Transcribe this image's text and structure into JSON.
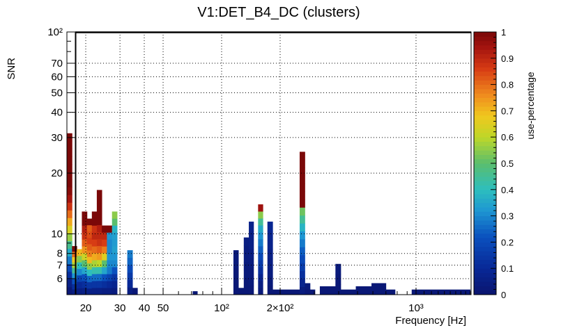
{
  "chart_data": {
    "type": "heatmap",
    "title": "V1:DET_B4_DC (clusters)",
    "xlabel": "Frequency [Hz]",
    "ylabel": "SNR",
    "zlabel": "use-percentage",
    "x_scale": "log",
    "y_scale": "log",
    "xlim": [
      16,
      1920
    ],
    "ylim": [
      5.0,
      100
    ],
    "zlim": [
      0,
      1
    ],
    "x_tick_labels": [
      "20",
      "30",
      "40",
      "50",
      "10²",
      "2×10²",
      "10³"
    ],
    "y_tick_labels": [
      "6",
      "7",
      "8",
      "10",
      "20",
      "30",
      "40",
      "50",
      "60",
      "70",
      "10²"
    ],
    "z_tick_labels": [
      "0",
      "0.1",
      "0.2",
      "0.3",
      "0.4",
      "0.5",
      "0.6",
      "0.7",
      "0.8",
      "0.9",
      "1"
    ],
    "grid": true,
    "colormap": "kBird-like rainbow (navy → blue → cyan → green → yellow → orange → red → dark red)",
    "columns": [
      {
        "x0": 16.0,
        "x1": 17.0,
        "snr_max": 31.5,
        "z": [
          0.02,
          0.06,
          0.12,
          0.2,
          0.28,
          0.36,
          0.46,
          0.56,
          0.64,
          0.72,
          0.8,
          0.88,
          0.94,
          0.98,
          1.0,
          1.0,
          1.0,
          1.0,
          1.0,
          1.0,
          1.0
        ]
      },
      {
        "x0": 17.0,
        "x1": 18.0,
        "snr_max": 8.7,
        "z": [
          0.05,
          0.12,
          0.22,
          0.32,
          0.45,
          0.58,
          0.68,
          0.8,
          1.0
        ]
      },
      {
        "x0": 18.0,
        "x1": 19.1,
        "snr_max": 8.4,
        "z": [
          0.05,
          0.1,
          0.18,
          0.3,
          0.4,
          0.55,
          0.7
        ]
      },
      {
        "x0": 19.1,
        "x1": 20.3,
        "snr_max": 12.9,
        "z": [
          0.06,
          0.12,
          0.22,
          0.35,
          0.5,
          0.62,
          0.75,
          0.82,
          0.88,
          0.92,
          1.0,
          1.0
        ]
      },
      {
        "x0": 20.3,
        "x1": 21.5,
        "snr_max": 11.9,
        "z": [
          0.06,
          0.14,
          0.25,
          0.4,
          0.55,
          0.7,
          0.78,
          0.82,
          0.86,
          0.84,
          0.82,
          1.0
        ]
      },
      {
        "x0": 21.5,
        "x1": 22.8,
        "snr_max": 12.9,
        "z": [
          0.06,
          0.14,
          0.26,
          0.42,
          0.58,
          0.72,
          0.8,
          0.86,
          0.9,
          0.88,
          1.0,
          1.0
        ]
      },
      {
        "x0": 22.8,
        "x1": 24.2,
        "snr_max": 16.5,
        "z": [
          0.06,
          0.14,
          0.26,
          0.42,
          0.6,
          0.74,
          0.82,
          0.88,
          0.9,
          0.92,
          1.0,
          1.0,
          1.0,
          1.0,
          1.0
        ]
      },
      {
        "x0": 24.2,
        "x1": 25.7,
        "snr_max": 11.0,
        "z": [
          0.05,
          0.12,
          0.22,
          0.35,
          0.5,
          0.65,
          0.78,
          0.86,
          0.9,
          1.0
        ]
      },
      {
        "x0": 25.7,
        "x1": 27.3,
        "snr_max": 11.0,
        "z": [
          0.05,
          0.1,
          0.18,
          0.28,
          0.3,
          0.32,
          0.3,
          0.3,
          0.32,
          1.0
        ]
      },
      {
        "x0": 27.3,
        "x1": 29.0,
        "snr_max": 12.9,
        "z": [
          0.04,
          0.08,
          0.14,
          0.22,
          0.3,
          0.32,
          0.34,
          0.33,
          0.34,
          0.38,
          0.5,
          0.55
        ]
      },
      {
        "x0": 32.7,
        "x1": 34.8,
        "snr_max": 8.3,
        "z": [
          0.05,
          0.1,
          0.15,
          0.2,
          0.25,
          0.28
        ]
      },
      {
        "x0": 34.8,
        "x1": 36.9,
        "snr_max": 5.4,
        "z": [
          0.02
        ]
      },
      {
        "x0": 71.0,
        "x1": 75.0,
        "snr_max": 5.2,
        "z": [
          0.02
        ]
      },
      {
        "x0": 115.0,
        "x1": 122.0,
        "snr_max": 8.3,
        "z": [
          0.02,
          0.02,
          0.02,
          0.03,
          0.03
        ]
      },
      {
        "x0": 122.0,
        "x1": 130.0,
        "snr_max": 5.4,
        "z": [
          0.02
        ]
      },
      {
        "x0": 130.0,
        "x1": 138.0,
        "snr_max": 9.6,
        "z": [
          0.02,
          0.02,
          0.03,
          0.03,
          0.04,
          0.04,
          0.05
        ]
      },
      {
        "x0": 138.0,
        "x1": 146.0,
        "snr_max": 11.5,
        "z": [
          0.02,
          0.03,
          0.03,
          0.04,
          0.05,
          0.06,
          0.06,
          0.07
        ]
      },
      {
        "x0": 154.0,
        "x1": 163.0,
        "snr_max": 14.0,
        "z": [
          0.03,
          0.05,
          0.08,
          0.12,
          0.16,
          0.2,
          0.24,
          0.28,
          0.32,
          0.36,
          0.45,
          0.55,
          0.95
        ]
      },
      {
        "x0": 172.0,
        "x1": 183.0,
        "snr_max": 11.5,
        "z": [
          0.02,
          0.03,
          0.04,
          0.05,
          0.06,
          0.07,
          0.08,
          0.09
        ]
      },
      {
        "x0": 183.0,
        "x1": 252.0,
        "snr_max": 5.3,
        "z": [
          0.02
        ]
      },
      {
        "x0": 252.0,
        "x1": 268.0,
        "snr_max": 25.5,
        "z": [
          0.04,
          0.08,
          0.12,
          0.16,
          0.2,
          0.24,
          0.28,
          0.32,
          0.38,
          0.45,
          0.52,
          1.0,
          1.0,
          1.0,
          1.0,
          1.0,
          1.0,
          1.0
        ]
      },
      {
        "x0": 268.0,
        "x1": 285.0,
        "snr_max": 5.7,
        "z": [
          0.02,
          0.03
        ]
      },
      {
        "x0": 285.0,
        "x1": 302.0,
        "snr_max": 5.3,
        "z": [
          0.02
        ]
      },
      {
        "x0": 320.0,
        "x1": 385.0,
        "snr_max": 5.5,
        "z": [
          0.02
        ]
      },
      {
        "x0": 385.0,
        "x1": 410.0,
        "snr_max": 7.1,
        "z": [
          0.02,
          0.02,
          0.03
        ]
      },
      {
        "x0": 410.0,
        "x1": 490.0,
        "snr_max": 5.3,
        "z": [
          0.02
        ]
      },
      {
        "x0": 490.0,
        "x1": 590.0,
        "snr_max": 5.5,
        "z": [
          0.02
        ]
      },
      {
        "x0": 590.0,
        "x1": 700.0,
        "snr_max": 5.7,
        "z": [
          0.02,
          0.02
        ]
      },
      {
        "x0": 700.0,
        "x1": 780.0,
        "snr_max": 5.3,
        "z": [
          0.02
        ]
      },
      {
        "x0": 950.0,
        "x1": 1900.0,
        "snr_max": 5.3,
        "z": [
          0.02
        ]
      }
    ]
  }
}
